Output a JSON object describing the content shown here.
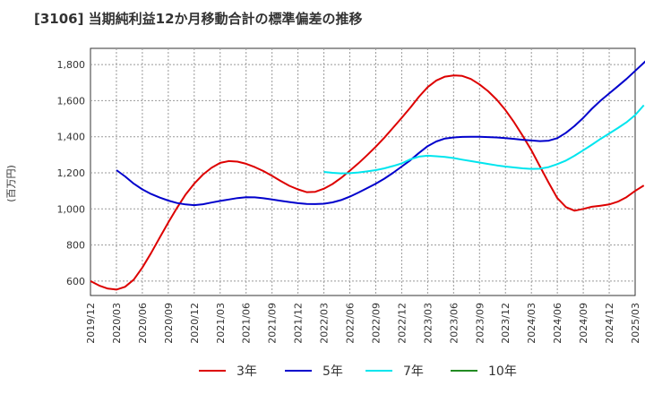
{
  "title": "[3106]  当期純利益12か月移動合計の標準偏差の推移",
  "chart_data": {
    "type": "line",
    "ylabel": "(百万円)",
    "ylim": [
      520,
      1890
    ],
    "y_ticks": [
      600,
      800,
      1000,
      1200,
      1400,
      1600,
      1800
    ],
    "y_tick_labels": [
      "600",
      "800",
      "1,000",
      "1,200",
      "1,400",
      "1,600",
      "1,800"
    ],
    "x_tick_labels": [
      "2019/12",
      "2020/03",
      "2020/06",
      "2020/09",
      "2020/12",
      "2021/03",
      "2021/06",
      "2021/09",
      "2021/12",
      "2022/03",
      "2022/06",
      "2022/09",
      "2022/12",
      "2023/03",
      "2023/06",
      "2023/09",
      "2023/12",
      "2024/03",
      "2024/06",
      "2024/09",
      "2024/12",
      "2025/03"
    ],
    "grid": true,
    "legend_position": "bottom",
    "series": [
      {
        "name": "3年",
        "color": "#dd0000",
        "start": "2019/12",
        "values": [
          600,
          575,
          558,
          553,
          568,
          608,
          675,
          755,
          840,
          925,
          1005,
          1080,
          1140,
          1190,
          1228,
          1255,
          1265,
          1262,
          1250,
          1232,
          1210,
          1183,
          1155,
          1128,
          1108,
          1093,
          1095,
          1112,
          1138,
          1172,
          1212,
          1253,
          1298,
          1345,
          1395,
          1450,
          1505,
          1562,
          1622,
          1675,
          1712,
          1733,
          1740,
          1737,
          1720,
          1690,
          1652,
          1605,
          1548,
          1480,
          1405,
          1325,
          1235,
          1145,
          1060,
          1010,
          990,
          1000,
          1012,
          1018,
          1025,
          1040,
          1065,
          1100,
          1130
        ]
      },
      {
        "name": "5年",
        "color": "#0000cc",
        "start": "2020/03",
        "values": [
          1215,
          1180,
          1140,
          1108,
          1083,
          1063,
          1046,
          1033,
          1025,
          1021,
          1026,
          1035,
          1044,
          1052,
          1060,
          1065,
          1064,
          1059,
          1052,
          1045,
          1038,
          1032,
          1028,
          1027,
          1029,
          1036,
          1049,
          1068,
          1091,
          1115,
          1140,
          1168,
          1200,
          1235,
          1270,
          1310,
          1348,
          1374,
          1390,
          1396,
          1399,
          1400,
          1400,
          1398,
          1396,
          1392,
          1388,
          1383,
          1379,
          1376,
          1378,
          1392,
          1422,
          1460,
          1505,
          1555,
          1600,
          1640,
          1680,
          1720,
          1765,
          1810,
          1855
        ]
      },
      {
        "name": "7年",
        "color": "#00e5ee",
        "start": "2022/03",
        "values": [
          1205,
          1200,
          1197,
          1198,
          1202,
          1208,
          1215,
          1225,
          1238,
          1252,
          1275,
          1290,
          1295,
          1292,
          1288,
          1282,
          1273,
          1265,
          1257,
          1249,
          1241,
          1235,
          1230,
          1225,
          1222,
          1223,
          1232,
          1248,
          1268,
          1295,
          1325,
          1356,
          1388,
          1418,
          1448,
          1480,
          1520,
          1575
        ]
      },
      {
        "name": "10年",
        "color": "#228b22",
        "start": "2024/12",
        "values": []
      }
    ]
  }
}
